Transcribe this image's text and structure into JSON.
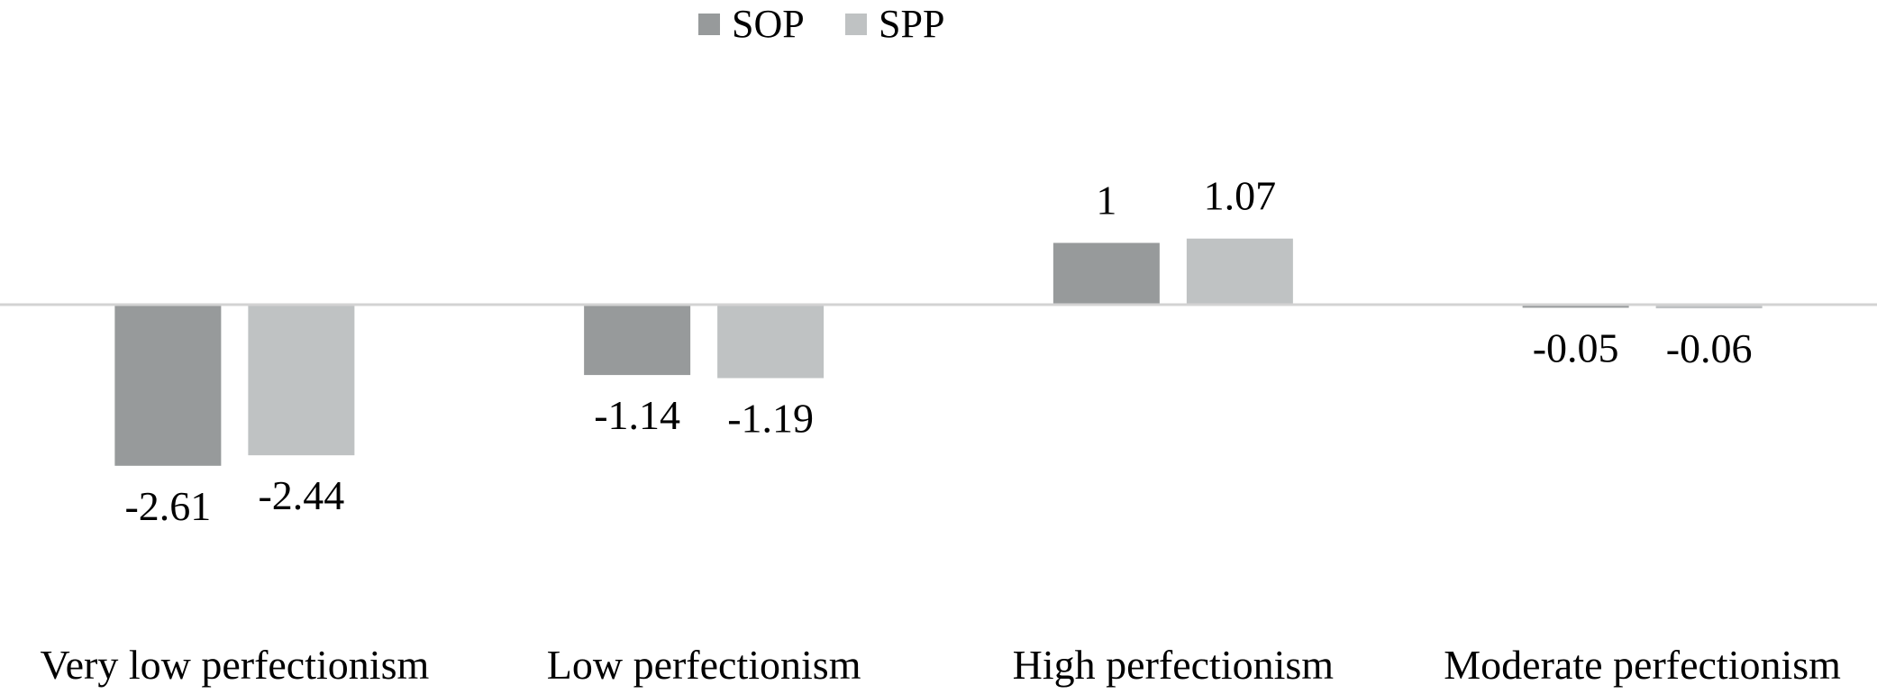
{
  "chart_data": {
    "type": "bar",
    "categories": [
      "Very low perfectionism",
      "Low perfectionism",
      "High perfectionism",
      "Moderate perfectionism"
    ],
    "series": [
      {
        "name": "SOP",
        "values": [
          -2.61,
          -1.14,
          1,
          -0.05
        ],
        "labels": [
          "-2.61",
          "-1.14",
          "1",
          "-0.05"
        ],
        "color": "#979a9b"
      },
      {
        "name": "SPP",
        "values": [
          -2.44,
          -1.19,
          1.07,
          -0.06
        ],
        "labels": [
          "-2.44",
          "-1.19",
          "1.07",
          "-0.06"
        ],
        "color": "#bfc2c3"
      }
    ],
    "ylim": [
      -3.6,
      2.3
    ],
    "legend": "top-center",
    "grid": false,
    "title": "",
    "xlabel": "",
    "ylabel": ""
  },
  "colors": {
    "zero_line": "#d3d3d3",
    "text": "#000000"
  }
}
